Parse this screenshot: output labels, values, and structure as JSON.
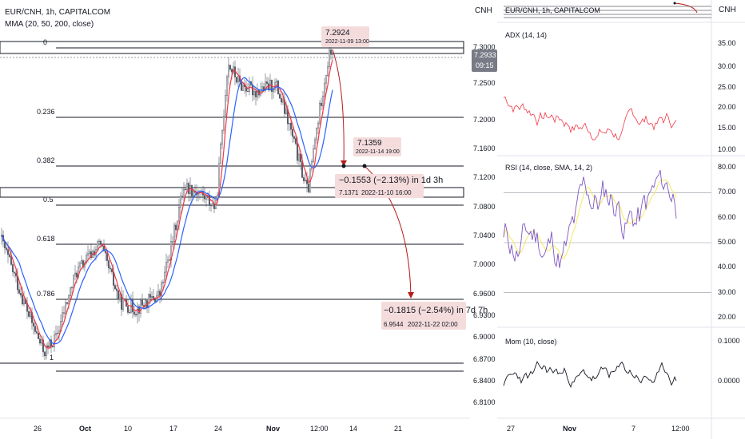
{
  "main": {
    "symbol_line": "EUR/CNH, 1h, CAPITALCOM",
    "indicator_line": "MMA (20, 50, 200, close)",
    "currency": "CNH",
    "price_ticks": [
      "7.3000",
      "7.2500",
      "7.2000",
      "7.1600",
      "7.1200",
      "7.0800",
      "7.0400",
      "7.0000",
      "6.9600",
      "6.9300",
      "6.9000",
      "6.8700",
      "6.8400",
      "6.8100"
    ],
    "last_price": "7.2933",
    "countdown": "09:15",
    "fib_levels": [
      {
        "label": "0",
        "price": "7.3000"
      },
      {
        "label": "0.236",
        "price": "7.2000"
      },
      {
        "label": "0.382",
        "price": "7.1359"
      },
      {
        "label": "0.5",
        "price": "7.0800"
      },
      {
        "label": "0.618",
        "price": "7.0300"
      },
      {
        "label": "0.786",
        "price": "6.9544"
      },
      {
        "label": "1",
        "price": "6.8700"
      }
    ],
    "x_ticks": [
      "26",
      "Oct",
      "10",
      "17",
      "24",
      "Nov",
      "12:00",
      "14",
      "21"
    ],
    "annotations": {
      "peak_price": "7.2924",
      "peak_time": "2022-11-09 13:00",
      "mid_price": "7.1359",
      "mid_time": "2022-11-14 19:00",
      "move1": "−0.1553 (−2.13%) in 1d 3h",
      "move1_price": "7.1371",
      "move1_time": "2022-11-10 16:00",
      "move2": "−0.1815 (−2.54%) in 7d 7h",
      "move2_price": "6.9544",
      "move2_time": "2022-11-22 02:00"
    }
  },
  "right": {
    "currency": "CNH",
    "mini_title": "EUR/CNH, 1h, CAPITALCOM",
    "adx": {
      "label": "ADX (14, 14)",
      "ticks": [
        "35.00",
        "30.00",
        "25.00",
        "20.00",
        "15.00",
        "10.00"
      ],
      "color": "#f23645"
    },
    "rsi": {
      "label": "RSI (14, close, SMA, 14, 2)",
      "ticks": [
        "80.00",
        "70.00",
        "60.00",
        "50.00",
        "40.00",
        "30.00",
        "20.00"
      ],
      "color": "#7e57c2",
      "ma_color": "#f5e960"
    },
    "mom": {
      "label": "Mom (10, close)",
      "ticks": [
        "0.1000",
        "0.0000"
      ],
      "color": "#131722"
    },
    "x_ticks": [
      "27",
      "Nov",
      "7",
      "12:00"
    ]
  },
  "colors": {
    "bull": "#131722",
    "ma20": "#f23645",
    "ma50": "#2962ff",
    "annot": "#b71c1c"
  }
}
